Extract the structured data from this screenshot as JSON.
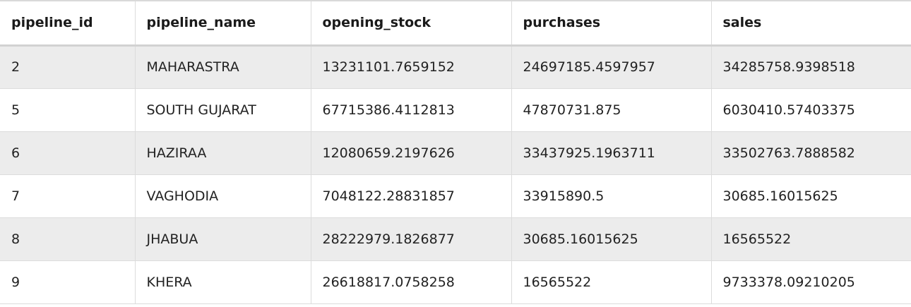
{
  "table": {
    "headers": [
      "pipeline_id",
      "pipeline_name",
      "opening_stock",
      "purchases",
      "sales"
    ],
    "rows": [
      [
        "2",
        "MAHARASTRA",
        "13231101.7659152",
        "24697185.4597957",
        "34285758.9398518"
      ],
      [
        "5",
        "SOUTH GUJARAT",
        "67715386.4112813",
        "47870731.875",
        "6030410.57403375"
      ],
      [
        "6",
        "HAZIRAA",
        "12080659.2197626",
        "33437925.1963711",
        "33502763.7888582"
      ],
      [
        "7",
        "VAGHODIA",
        "7048122.28831857",
        "33915890.5",
        "30685.16015625"
      ],
      [
        "8",
        "JHABUA",
        "28222979.1826877",
        "30685.16015625",
        "16565522"
      ],
      [
        "9",
        "KHERA",
        "26618817.0758258",
        "16565522",
        "9733378.09210205"
      ]
    ]
  }
}
